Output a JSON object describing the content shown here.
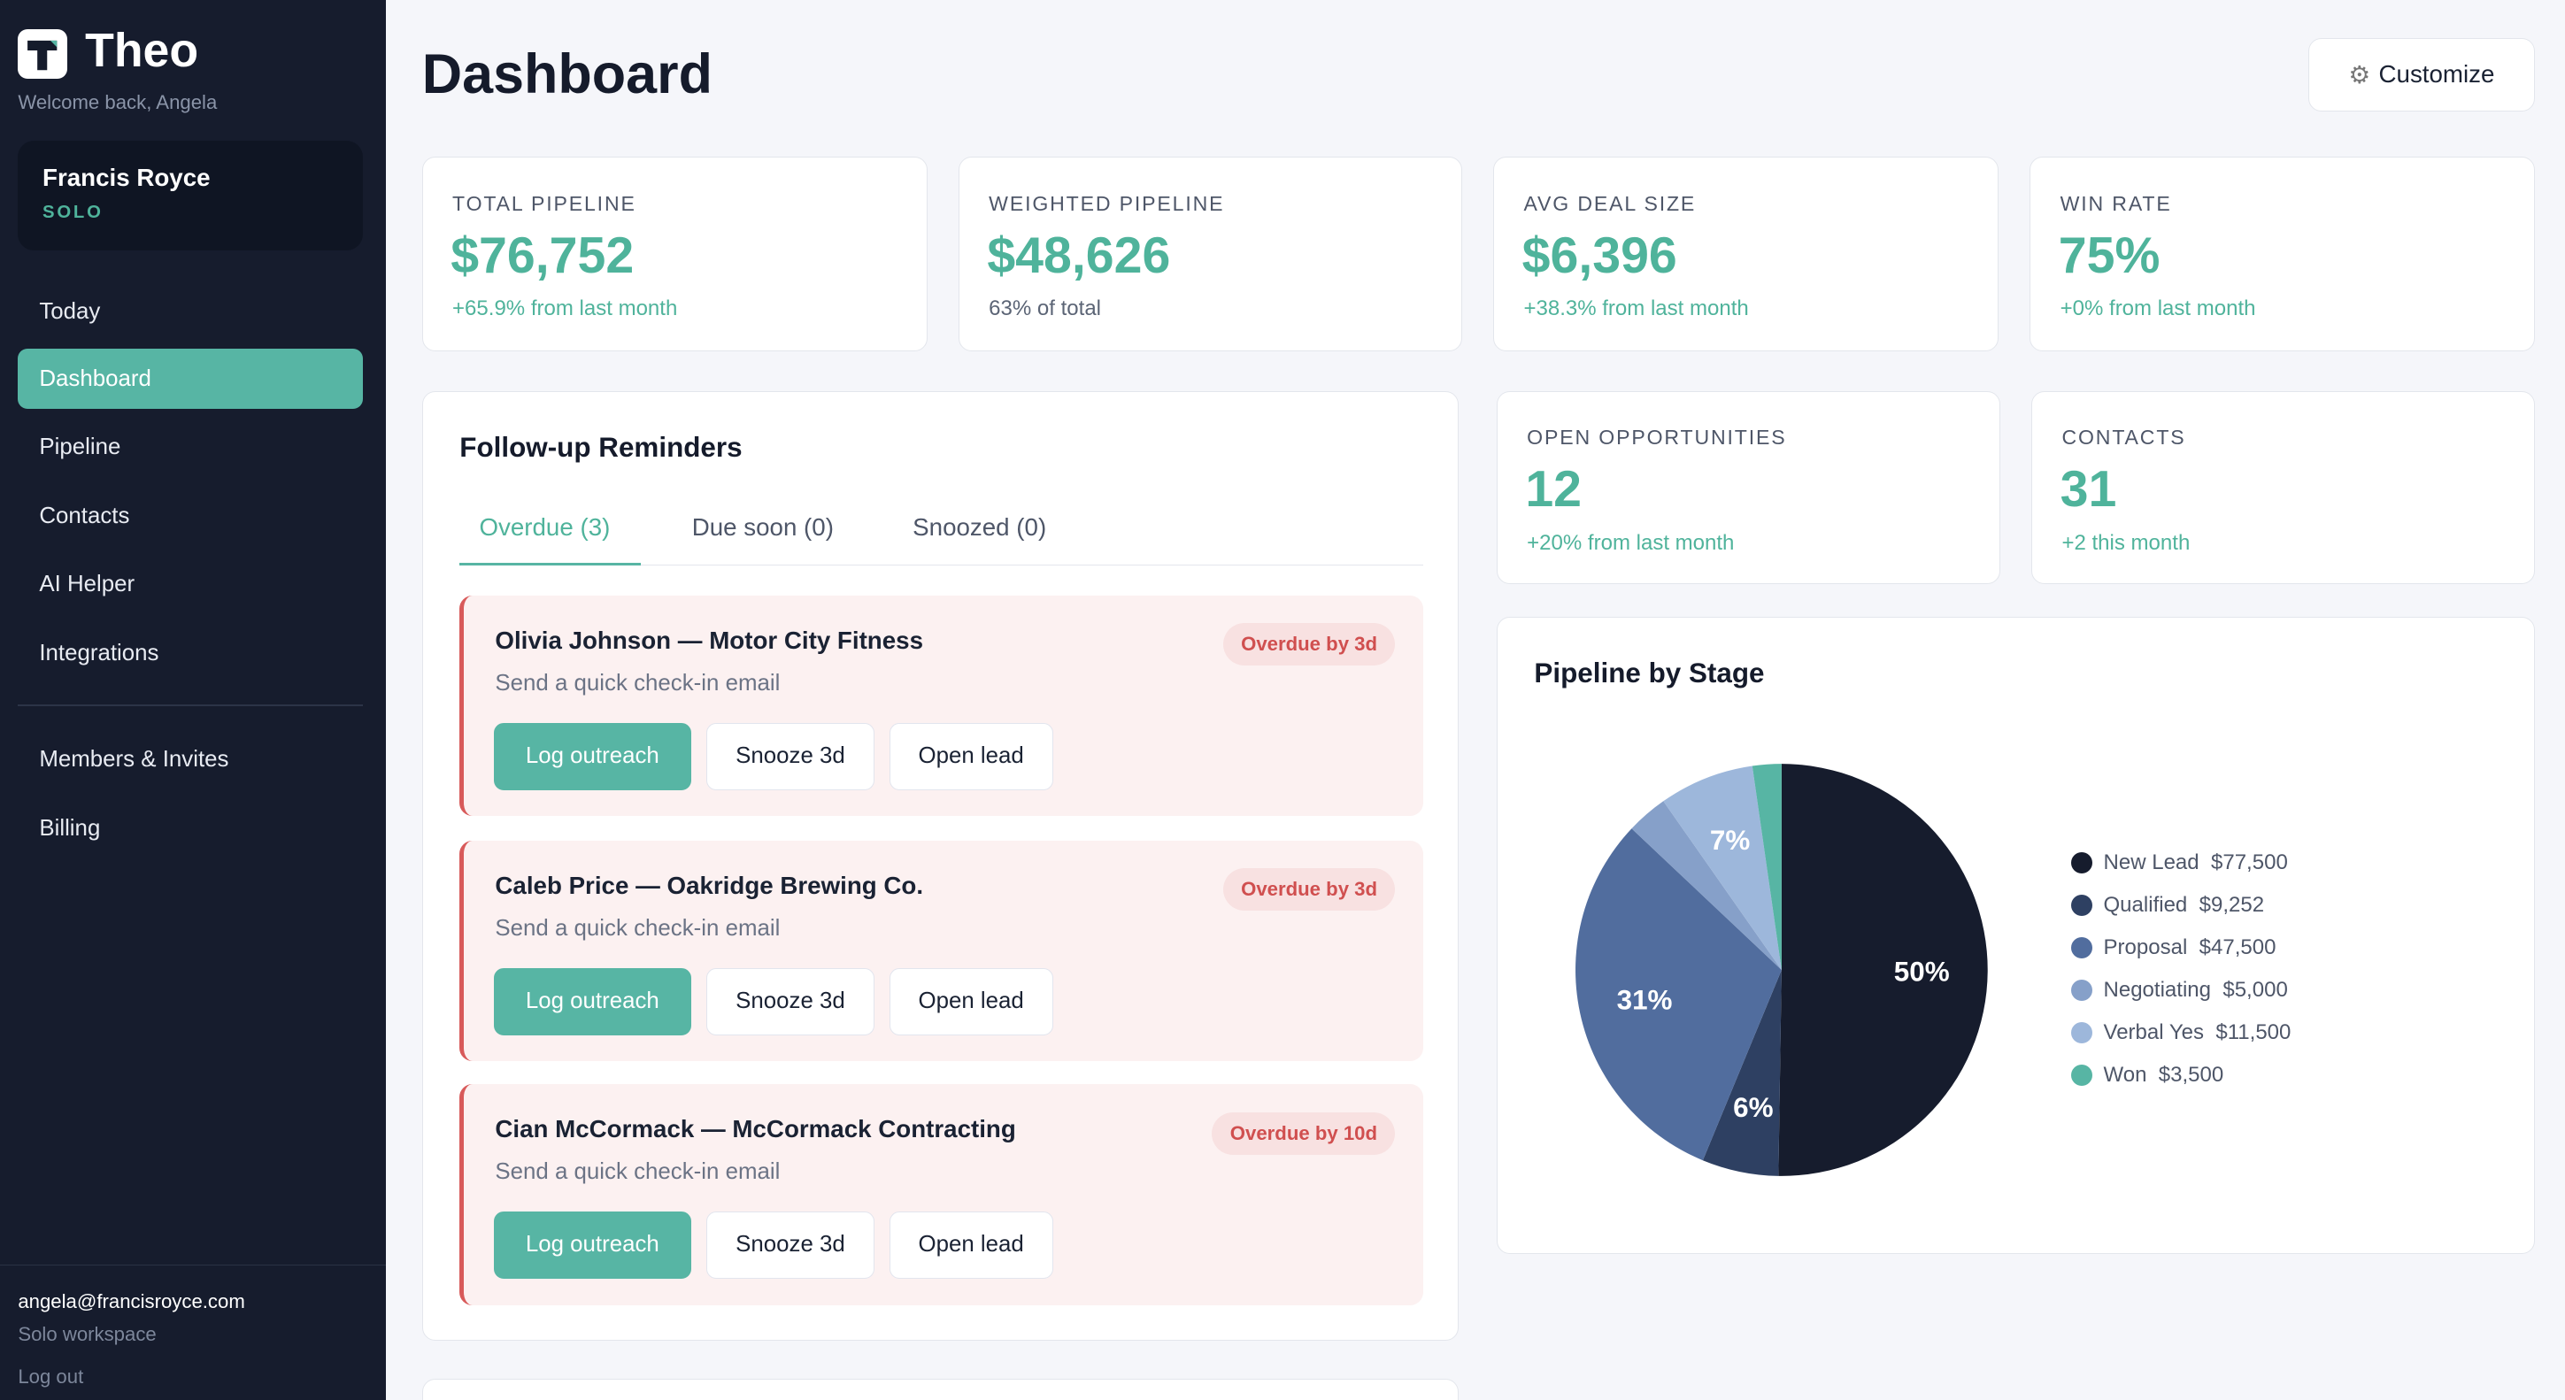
{
  "sidebar": {
    "brand": "Theo",
    "welcome": "Welcome back, Angela",
    "account": {
      "name": "Francis Royce",
      "plan": "SOLO"
    },
    "nav": [
      {
        "label": "Today"
      },
      {
        "label": "Dashboard",
        "active": true
      },
      {
        "label": "Pipeline"
      },
      {
        "label": "Contacts"
      },
      {
        "label": "AI Helper"
      },
      {
        "label": "Integrations"
      }
    ],
    "nav2": [
      {
        "label": "Members & Invites"
      },
      {
        "label": "Billing"
      }
    ],
    "footer": {
      "email": "angela@francisroyce.com",
      "workspace": "Solo workspace",
      "logout": "Log out"
    }
  },
  "header": {
    "title": "Dashboard",
    "customize": "Customize",
    "customize_icon": "gear-icon"
  },
  "stats": [
    {
      "label": "TOTAL PIPELINE",
      "value": "$76,752",
      "sub": "+65.9% from last month"
    },
    {
      "label": "WEIGHTED PIPELINE",
      "value": "$48,626",
      "sub": "63% of total"
    },
    {
      "label": "AVG DEAL SIZE",
      "value": "$6,396",
      "sub": "+38.3% from last month"
    },
    {
      "label": "WIN RATE",
      "value": "75%",
      "sub": "+0% from last month"
    },
    {
      "label": "OPEN OPPORTUNITIES",
      "value": "12",
      "sub": "+20% from last month"
    },
    {
      "label": "CONTACTS",
      "value": "31",
      "sub": "+2 this month"
    }
  ],
  "reminders": {
    "title": "Follow-up Reminders",
    "tabs": [
      "Overdue (3)",
      "Due soon (0)",
      "Snoozed (0)"
    ],
    "buttons": {
      "log": "Log outreach",
      "snooze": "Snooze 3d",
      "open": "Open lead"
    },
    "items": [
      {
        "name": "Olivia Johnson — Motor City Fitness",
        "desc": "Send a quick check-in email",
        "badge": "Overdue by 3d"
      },
      {
        "name": "Caleb Price — Oakridge Brewing Co.",
        "desc": "Send a quick check-in email",
        "badge": "Overdue by 3d"
      },
      {
        "name": "Cian McCormack — McCormack Contracting",
        "desc": "Send a quick check-in email",
        "badge": "Overdue by 10d"
      }
    ]
  },
  "colors": {
    "accent": "#57b5a4",
    "sidebar": "#161c2d",
    "overdue": "#d85a5a"
  },
  "chart_data": {
    "type": "pie",
    "title": "Pipeline by Stage",
    "categories": [
      "New Lead",
      "Qualified",
      "Proposal",
      "Negotiating",
      "Verbal Yes",
      "Won"
    ],
    "values": [
      77500,
      9252,
      47500,
      5000,
      11500,
      3500
    ],
    "value_labels": [
      "$77,500",
      "$9,252",
      "$47,500",
      "$5,000",
      "$11,500",
      "$3,500"
    ],
    "slice_labels": [
      "50%",
      "6%",
      "31%",
      "",
      "7%",
      ""
    ],
    "colors": [
      "#161c2d",
      "#2e4062",
      "#516d9e",
      "#86a0c9",
      "#9db7db",
      "#57b5a4"
    ],
    "legend": "right"
  }
}
